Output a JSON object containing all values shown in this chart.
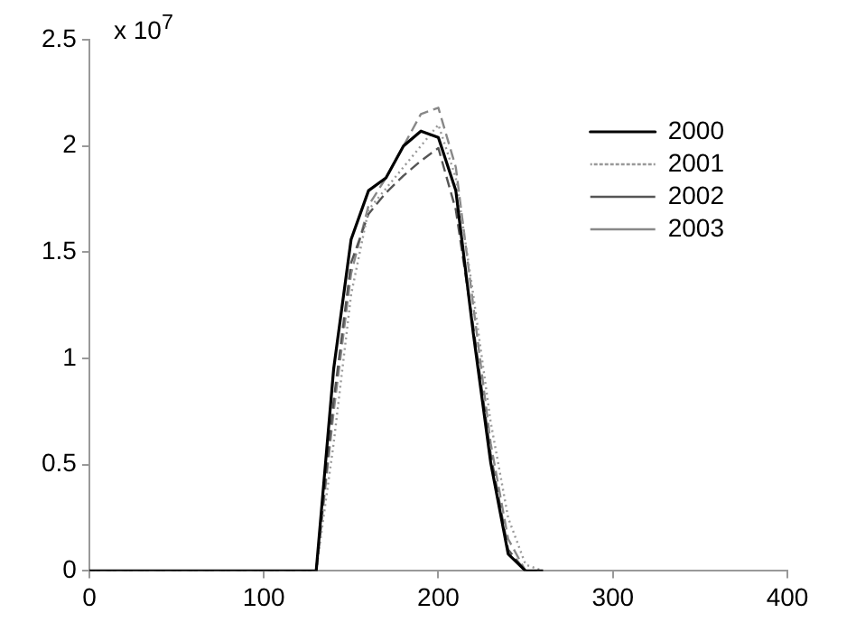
{
  "chart_data": {
    "type": "line",
    "x": [
      0,
      120,
      130,
      140,
      150,
      160,
      170,
      180,
      190,
      200,
      210,
      220,
      230,
      240,
      250,
      260
    ],
    "series": [
      {
        "name": "2000",
        "color": "#000000",
        "line_style": "solid",
        "values": [
          0,
          0,
          0,
          0.95,
          1.56,
          1.79,
          1.85,
          2.0,
          2.07,
          2.04,
          1.79,
          1.12,
          0.51,
          0.08,
          0,
          0
        ]
      },
      {
        "name": "2001",
        "color": "#999999",
        "line_style": "dotted",
        "values": [
          0,
          0,
          0,
          0.6,
          1.3,
          1.7,
          1.8,
          1.9,
          2.0,
          2.1,
          1.85,
          1.3,
          0.7,
          0.25,
          0.03,
          0
        ]
      },
      {
        "name": "2002",
        "color": "#555555",
        "line_style": "dashed",
        "values": [
          0,
          0,
          0,
          0.8,
          1.45,
          1.68,
          1.78,
          1.86,
          1.93,
          1.99,
          1.7,
          1.15,
          0.55,
          0.1,
          0,
          0
        ]
      },
      {
        "name": "2003",
        "color": "#888888",
        "line_style": "dashed",
        "values": [
          0,
          0,
          0,
          0.75,
          1.4,
          1.72,
          1.85,
          2.0,
          2.15,
          2.18,
          1.9,
          1.25,
          0.6,
          0.15,
          0,
          0
        ]
      }
    ],
    "xlim": [
      0,
      400
    ],
    "xticks": [
      0,
      100,
      200,
      300,
      400
    ],
    "ylim": [
      0,
      2.5
    ],
    "yticks": [
      0,
      0.5,
      1,
      1.5,
      2,
      2.5
    ],
    "annotations": [
      "x 10$^{7}$"
    ],
    "grid": false,
    "legend": "top right",
    "marker": "none"
  }
}
